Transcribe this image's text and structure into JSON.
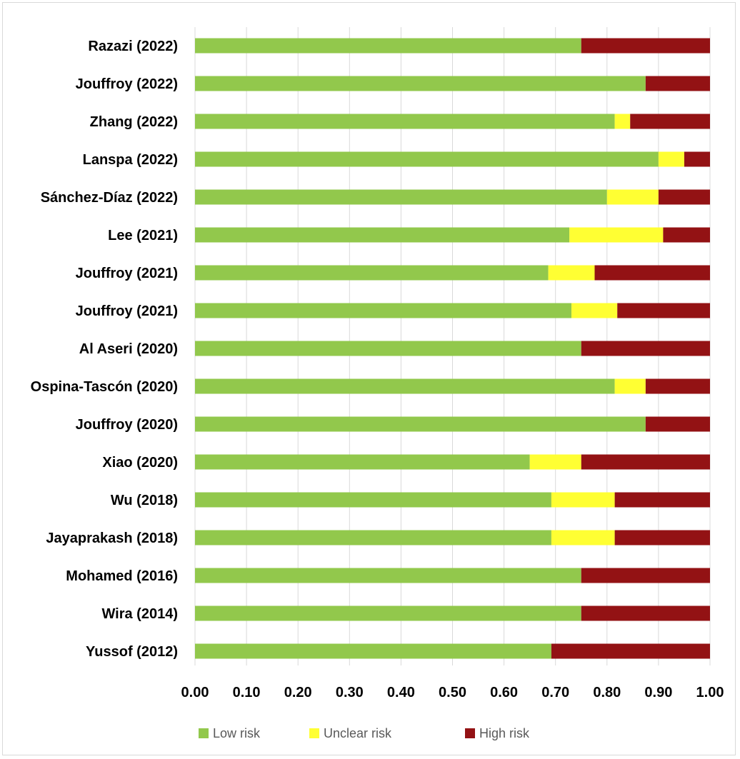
{
  "chart_data": {
    "type": "bar",
    "orientation": "horizontal",
    "stacked": true,
    "title": "",
    "xlabel": "",
    "ylabel": "",
    "xlim": [
      0,
      1
    ],
    "x_ticks": [
      "0.00",
      "0.10",
      "0.20",
      "0.30",
      "0.40",
      "0.50",
      "0.60",
      "0.70",
      "0.80",
      "0.90",
      "1.00"
    ],
    "grid": "vertical",
    "legend_position": "bottom",
    "categories": [
      "Razazi (2022)",
      "Jouffroy (2022)",
      "Zhang (2022)",
      "Lanspa (2022)",
      "Sánchez-Díaz (2022)",
      "Lee (2021)",
      "Jouffroy (2021)",
      "Jouffroy (2021)",
      "Al Aseri (2020)",
      "Ospina-Tascón (2020)",
      "Jouffroy (2020)",
      "Xiao (2020)",
      "Wu (2018)",
      "Jayaprakash (2018)",
      "Mohamed (2016)",
      "Wira (2014)",
      "Yussof (2012)"
    ],
    "series": [
      {
        "name": "Low risk",
        "color": "#92c84c",
        "values": [
          0.75,
          0.875,
          0.815,
          0.9,
          0.8,
          0.727,
          0.686,
          0.731,
          0.75,
          0.815,
          0.875,
          0.65,
          0.692,
          0.692,
          0.75,
          0.75,
          0.692
        ]
      },
      {
        "name": "Unclear risk",
        "color": "#ffff33",
        "values": [
          0.0,
          0.0,
          0.03,
          0.05,
          0.1,
          0.182,
          0.09,
          0.089,
          0.0,
          0.06,
          0.0,
          0.1,
          0.123,
          0.123,
          0.0,
          0.0,
          0.0
        ]
      },
      {
        "name": "High risk",
        "color": "#931214",
        "values": [
          0.25,
          0.125,
          0.155,
          0.05,
          0.1,
          0.091,
          0.224,
          0.18,
          0.25,
          0.125,
          0.125,
          0.25,
          0.185,
          0.185,
          0.25,
          0.25,
          0.308
        ]
      }
    ]
  }
}
